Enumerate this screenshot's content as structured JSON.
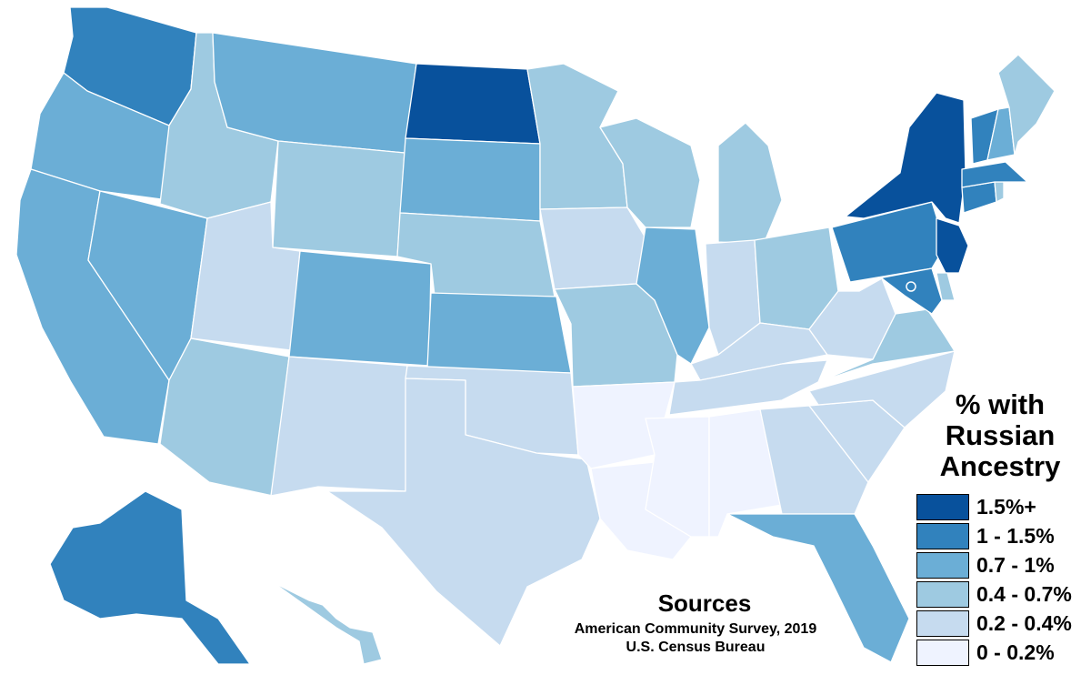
{
  "legend": {
    "title_lines": [
      "% with",
      "Russian",
      "Ancestry"
    ],
    "bins": [
      {
        "label": "1.5%+",
        "color": "#08519c"
      },
      {
        "label": "1 - 1.5%",
        "color": "#3182bd"
      },
      {
        "label": "0.7 - 1%",
        "color": "#6baed6"
      },
      {
        "label": "0.4 - 0.7%",
        "color": "#9ecae1"
      },
      {
        "label": "0.2 - 0.4%",
        "color": "#c6dbef"
      },
      {
        "label": "0 - 0.2%",
        "color": "#eff3ff"
      }
    ]
  },
  "sources": {
    "title": "Sources",
    "lines": [
      "American Community Survey, 2019",
      "U.S. Census Bureau"
    ]
  },
  "states": [
    {
      "id": "WA",
      "bin": "1 - 1.5%"
    },
    {
      "id": "OR",
      "bin": "0.7 - 1%"
    },
    {
      "id": "CA",
      "bin": "0.7 - 1%"
    },
    {
      "id": "NV",
      "bin": "0.7 - 1%"
    },
    {
      "id": "ID",
      "bin": "0.4 - 0.7%"
    },
    {
      "id": "MT",
      "bin": "0.7 - 1%"
    },
    {
      "id": "WY",
      "bin": "0.4 - 0.7%"
    },
    {
      "id": "UT",
      "bin": "0.2 - 0.4%"
    },
    {
      "id": "CO",
      "bin": "0.7 - 1%"
    },
    {
      "id": "AZ",
      "bin": "0.4 - 0.7%"
    },
    {
      "id": "NM",
      "bin": "0.2 - 0.4%"
    },
    {
      "id": "ND",
      "bin": "1.5%+"
    },
    {
      "id": "SD",
      "bin": "0.7 - 1%"
    },
    {
      "id": "NE",
      "bin": "0.4 - 0.7%"
    },
    {
      "id": "KS",
      "bin": "0.7 - 1%"
    },
    {
      "id": "OK",
      "bin": "0.2 - 0.4%"
    },
    {
      "id": "TX",
      "bin": "0.2 - 0.4%"
    },
    {
      "id": "MN",
      "bin": "0.4 - 0.7%"
    },
    {
      "id": "IA",
      "bin": "0.2 - 0.4%"
    },
    {
      "id": "MO",
      "bin": "0.4 - 0.7%"
    },
    {
      "id": "AR",
      "bin": "0 - 0.2%"
    },
    {
      "id": "LA",
      "bin": "0 - 0.2%"
    },
    {
      "id": "WI",
      "bin": "0.4 - 0.7%"
    },
    {
      "id": "IL",
      "bin": "0.7 - 1%"
    },
    {
      "id": "MI",
      "bin": "0.4 - 0.7%"
    },
    {
      "id": "IN",
      "bin": "0.2 - 0.4%"
    },
    {
      "id": "OH",
      "bin": "0.4 - 0.7%"
    },
    {
      "id": "KY",
      "bin": "0.2 - 0.4%"
    },
    {
      "id": "TN",
      "bin": "0.2 - 0.4%"
    },
    {
      "id": "MS",
      "bin": "0 - 0.2%"
    },
    {
      "id": "AL",
      "bin": "0 - 0.2%"
    },
    {
      "id": "GA",
      "bin": "0.2 - 0.4%"
    },
    {
      "id": "FL",
      "bin": "0.7 - 1%"
    },
    {
      "id": "SC",
      "bin": "0.2 - 0.4%"
    },
    {
      "id": "NC",
      "bin": "0.2 - 0.4%"
    },
    {
      "id": "VA",
      "bin": "0.4 - 0.7%"
    },
    {
      "id": "WV",
      "bin": "0.2 - 0.4%"
    },
    {
      "id": "PA",
      "bin": "1 - 1.5%"
    },
    {
      "id": "NY",
      "bin": "1.5%+"
    },
    {
      "id": "NJ",
      "bin": "1.5%+"
    },
    {
      "id": "DE",
      "bin": "0.4 - 0.7%"
    },
    {
      "id": "MD",
      "bin": "1 - 1.5%"
    },
    {
      "id": "DC",
      "bin": "1 - 1.5%"
    },
    {
      "id": "CT",
      "bin": "1 - 1.5%"
    },
    {
      "id": "RI",
      "bin": "0.4 - 0.7%"
    },
    {
      "id": "MA",
      "bin": "1 - 1.5%"
    },
    {
      "id": "VT",
      "bin": "1 - 1.5%"
    },
    {
      "id": "NH",
      "bin": "0.7 - 1%"
    },
    {
      "id": "ME",
      "bin": "0.4 - 0.7%"
    },
    {
      "id": "AK",
      "bin": "1 - 1.5%"
    },
    {
      "id": "HI",
      "bin": "0.4 - 0.7%"
    }
  ]
}
